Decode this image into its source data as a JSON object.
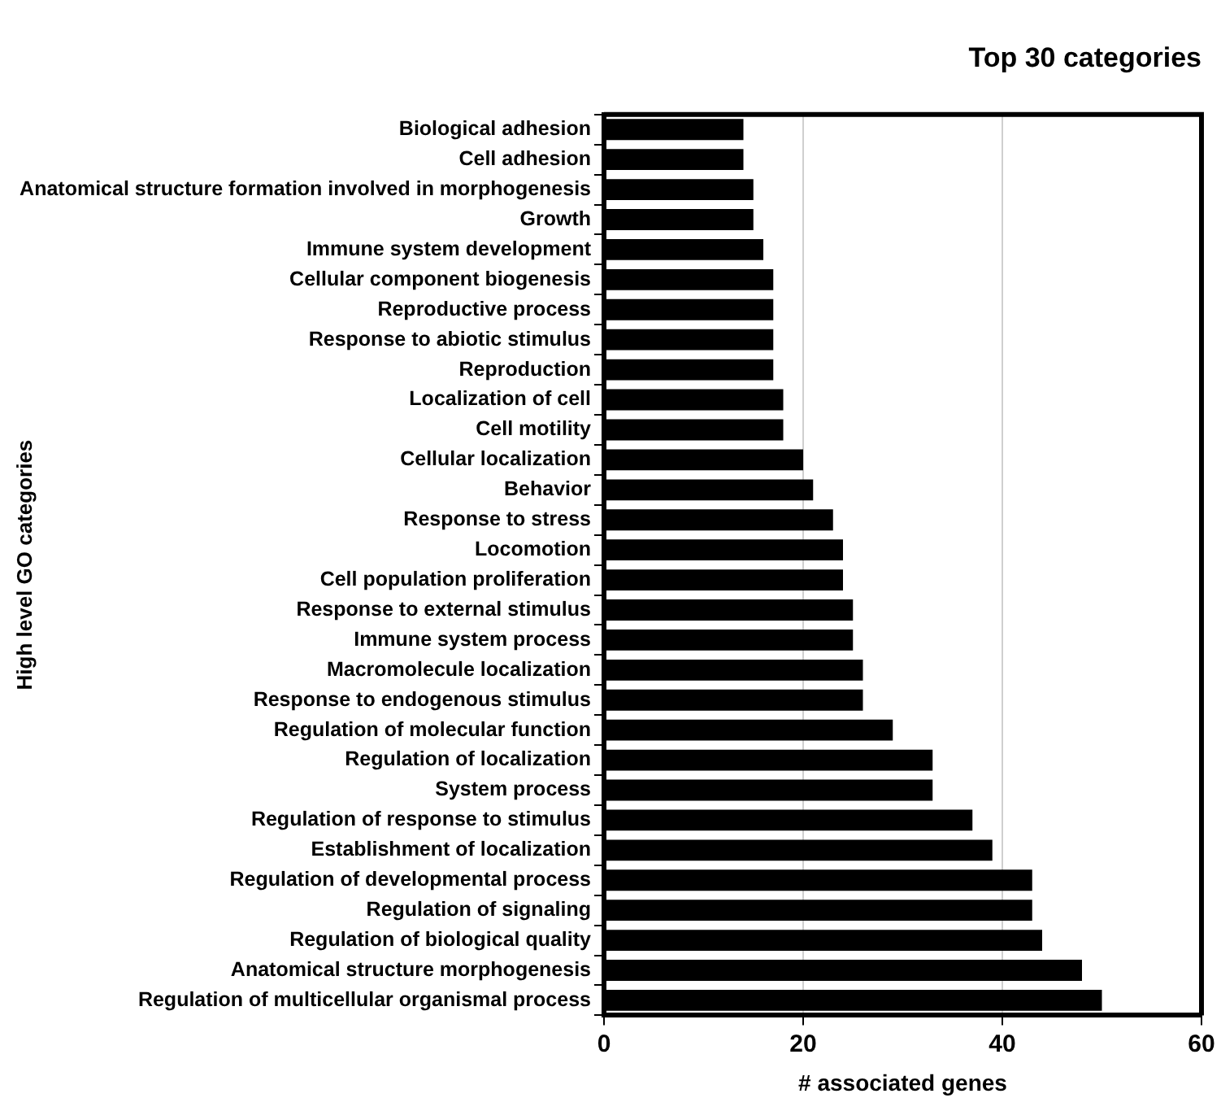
{
  "chart_data": {
    "type": "bar",
    "orientation": "horizontal",
    "title": "Top 30 categories",
    "xlabel": "# associated genes",
    "ylabel": "High level GO categories",
    "categories": [
      "Biological adhesion",
      "Cell adhesion",
      "Anatomical structure formation involved in morphogenesis",
      "Growth",
      "Immune system development",
      "Cellular component biogenesis",
      "Reproductive process",
      "Response to abiotic stimulus",
      "Reproduction",
      "Localization of cell",
      "Cell motility",
      "Cellular localization",
      "Behavior",
      "Response to stress",
      "Locomotion",
      "Cell population proliferation",
      "Response to external stimulus",
      "Immune system process",
      "Macromolecule localization",
      "Response to endogenous stimulus",
      "Regulation of molecular function",
      "Regulation of localization",
      "System process",
      "Regulation of response to stimulus",
      "Establishment of localization",
      "Regulation of developmental process",
      "Regulation of signaling",
      "Regulation of biological quality",
      "Anatomical structure morphogenesis",
      "Regulation of multicellular organismal process"
    ],
    "values": [
      14,
      14,
      15,
      15,
      16,
      17,
      17,
      17,
      17,
      18,
      18,
      20,
      21,
      23,
      24,
      24,
      25,
      25,
      26,
      26,
      29,
      33,
      33,
      37,
      39,
      43,
      43,
      44,
      48,
      50
    ],
    "color": "#000000",
    "xlim": [
      0,
      60
    ],
    "xticks": [
      0,
      20,
      40,
      60
    ],
    "grid": "x",
    "legend": false
  }
}
